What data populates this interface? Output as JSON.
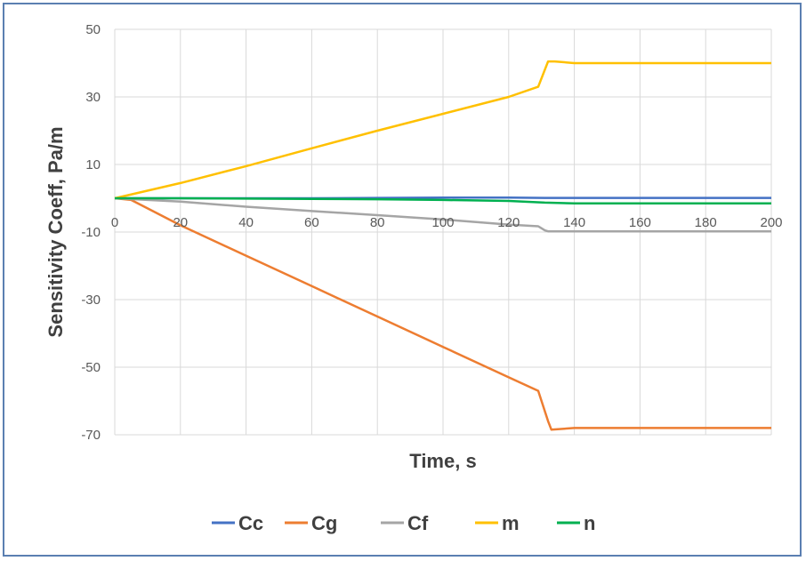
{
  "chart_data": {
    "type": "line",
    "title": "",
    "xlabel": "Time, s",
    "ylabel": "Sensitivity Coeff, Pa/m",
    "xlim": [
      0,
      200
    ],
    "ylim": [
      -70,
      50
    ],
    "x_ticks": [
      "0",
      "20",
      "40",
      "60",
      "80",
      "100",
      "120",
      "140",
      "160",
      "180",
      "200"
    ],
    "y_ticks": [
      "50",
      "30",
      "10",
      "-10",
      "-30",
      "-50",
      "-70"
    ],
    "grid": "vertical and horizontal",
    "legend_position": "bottom",
    "series": [
      {
        "name": "Cc",
        "color": "#4472c4",
        "x": [
          0,
          20,
          40,
          60,
          80,
          100,
          120,
          131,
          140,
          160,
          180,
          200
        ],
        "y": [
          0,
          0,
          0,
          0,
          0.1,
          0.2,
          0.2,
          0.1,
          0.1,
          0.1,
          0.1,
          0.1
        ]
      },
      {
        "name": "Cg",
        "color": "#ed7d31",
        "x": [
          0,
          5,
          10,
          20,
          40,
          60,
          80,
          100,
          120,
          129,
          132,
          133,
          140,
          160,
          180,
          200
        ],
        "y": [
          0,
          -0.5,
          -3,
          -8,
          -17,
          -26,
          -35,
          -44,
          -53,
          -57,
          -66,
          -68.5,
          -68,
          -68,
          -68,
          -68
        ]
      },
      {
        "name": "Cf",
        "color": "#a5a5a5",
        "x": [
          0,
          20,
          40,
          60,
          80,
          100,
          120,
          129,
          131,
          132,
          140,
          160,
          180,
          200
        ],
        "y": [
          0,
          -1,
          -2.5,
          -3.8,
          -5,
          -6.3,
          -7.8,
          -8.3,
          -9.5,
          -9.8,
          -9.8,
          -9.8,
          -9.8,
          -9.8
        ]
      },
      {
        "name": "m",
        "color": "#ffc000",
        "x": [
          0,
          20,
          40,
          60,
          80,
          100,
          120,
          129,
          131,
          132,
          134,
          140,
          160,
          180,
          200
        ],
        "y": [
          0,
          4.5,
          9.5,
          14.8,
          20,
          25,
          30,
          33,
          38,
          40.5,
          40.5,
          40,
          40,
          40,
          40
        ]
      },
      {
        "name": "n",
        "color": "#00b050",
        "x": [
          0,
          20,
          40,
          60,
          80,
          100,
          120,
          131,
          140,
          160,
          180,
          200
        ],
        "y": [
          0,
          0,
          -0.1,
          -0.2,
          -0.3,
          -0.5,
          -0.8,
          -1.3,
          -1.5,
          -1.5,
          -1.5,
          -1.5
        ]
      }
    ]
  }
}
